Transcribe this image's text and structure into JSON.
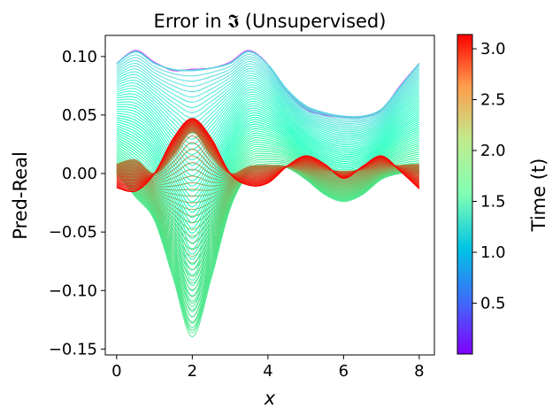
{
  "chart_data": {
    "type": "line",
    "title": "Error in 𝕴 (Unsupervised)",
    "xlabel": "x",
    "ylabel": "Pred-Real",
    "xlim": [
      -0.3,
      8.4
    ],
    "ylim": [
      -0.155,
      0.118
    ],
    "x_ticks": [
      0,
      2,
      4,
      6,
      8
    ],
    "y_ticks": [
      -0.15,
      -0.1,
      -0.05,
      0.0,
      0.05,
      0.1
    ],
    "y_tick_labels": [
      "−0.15",
      "−0.10",
      "−0.05",
      "0.00",
      "0.05",
      "0.10"
    ],
    "x_tick_labels": [
      "0",
      "2",
      "4",
      "6",
      "8"
    ],
    "grid": false,
    "colorbar": {
      "label": "Time (t)",
      "range": [
        0.0,
        3.14
      ],
      "ticks": [
        0.5,
        1.0,
        1.5,
        2.0,
        2.5,
        3.0
      ],
      "tick_labels": [
        "0.5",
        "1.0",
        "1.5",
        "2.0",
        "2.5",
        "3.0"
      ],
      "colormap": "rainbow"
    },
    "family": {
      "description_of_curves": "error curves over x for many time values t, colored by t",
      "t_range": [
        0.0,
        3.14
      ],
      "x_samples": [
        0,
        0.5,
        1,
        1.5,
        2,
        2.5,
        3,
        3.5,
        4,
        4.5,
        5,
        5.5,
        6,
        6.5,
        7,
        7.5,
        8
      ],
      "shown_curves": [
        {
          "t": 0.05,
          "values": [
            0.094,
            0.105,
            0.095,
            0.088,
            0.089,
            0.09,
            0.095,
            0.105,
            0.093,
            0.07,
            0.055,
            0.05,
            0.048,
            0.048,
            0.054,
            0.075,
            0.094
          ]
        },
        {
          "t": 1.0,
          "values": [
            0.094,
            0.104,
            0.094,
            0.089,
            0.088,
            0.09,
            0.094,
            0.104,
            0.093,
            0.072,
            0.058,
            0.052,
            0.049,
            0.049,
            0.055,
            0.074,
            0.094
          ]
        },
        {
          "t": 2.0,
          "values": [
            0.0,
            -0.02,
            -0.04,
            -0.09,
            -0.14,
            -0.09,
            -0.03,
            0.0,
            0.005,
            0.005,
            -0.005,
            -0.018,
            -0.024,
            -0.018,
            -0.005,
            0.0,
            0.0
          ]
        },
        {
          "t": 2.6,
          "values": [
            0.008,
            0.012,
            0.0,
            0.015,
            0.035,
            0.015,
            0.0,
            0.006,
            0.007,
            0.006,
            0.004,
            0.003,
            0.002,
            0.003,
            0.005,
            0.007,
            0.008
          ]
        },
        {
          "t": 3.1,
          "values": [
            -0.012,
            -0.015,
            0.0,
            0.03,
            0.047,
            0.03,
            0.0,
            -0.01,
            -0.008,
            0.006,
            0.015,
            0.008,
            -0.004,
            0.006,
            0.015,
            0.002,
            -0.013
          ]
        }
      ]
    }
  }
}
